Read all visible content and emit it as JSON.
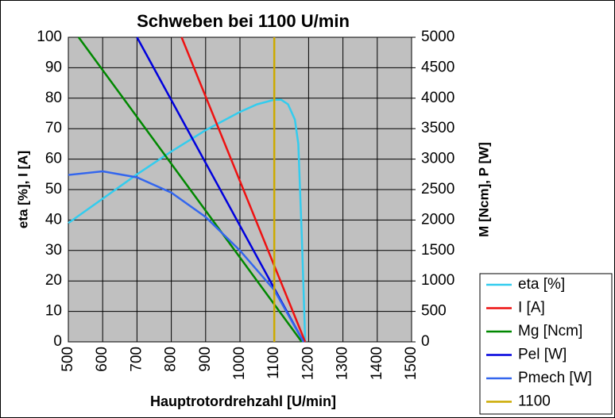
{
  "chart_data": {
    "type": "line",
    "title": "Schweben bei 1100 U/min",
    "x_label": "Hauptrotordrehzahl [U/min]",
    "y_label": "eta [%], I [A]",
    "y2_label": "M [Ncm], P [W]",
    "xlim": [
      500,
      1500
    ],
    "xticks": [
      500,
      600,
      700,
      800,
      900,
      1000,
      1100,
      1200,
      1300,
      1400,
      1500
    ],
    "ylim": [
      0,
      100
    ],
    "yticks": [
      0,
      10,
      20,
      30,
      40,
      50,
      60,
      70,
      80,
      90,
      100
    ],
    "y2lim": [
      0,
      5000
    ],
    "y2ticks": [
      0,
      500,
      1000,
      1500,
      2000,
      2500,
      3000,
      3500,
      4000,
      4500,
      5000
    ],
    "grid": true,
    "legend": "lower right",
    "series": [
      {
        "name": "eta [%]",
        "color": "#33ccee",
        "x": [
          500,
          600,
          700,
          800,
          900,
          1000,
          1050,
          1100,
          1120,
          1140,
          1160,
          1170,
          1180,
          1185,
          1190
        ],
        "values": [
          39,
          47,
          55,
          62.5,
          69.5,
          75.5,
          78,
          79.5,
          79.5,
          78,
          73,
          65,
          35,
          18,
          0
        ]
      },
      {
        "name": "I [A]",
        "color": "#ee1111",
        "x": [
          830,
          1190
        ],
        "values": [
          100,
          0
        ]
      },
      {
        "name": "Mg [Ncm]",
        "color": "#008800",
        "axis": "y2",
        "x": [
          530,
          1180
        ],
        "values": [
          5000,
          0
        ]
      },
      {
        "name": "Pel [W]",
        "color": "#0000dd",
        "axis": "y2",
        "x": [
          700,
          1185
        ],
        "values": [
          5000,
          0
        ]
      },
      {
        "name": "Pmech [W]",
        "color": "#3366ee",
        "axis": "y2",
        "x": [
          500,
          600,
          700,
          800,
          900,
          1000,
          1100,
          1185
        ],
        "values": [
          2740,
          2800,
          2700,
          2450,
          2050,
          1500,
          850,
          0
        ]
      },
      {
        "name": "1100",
        "color": "#ccaa00",
        "x": [
          1100,
          1100
        ],
        "values": [
          0,
          100
        ]
      }
    ]
  }
}
